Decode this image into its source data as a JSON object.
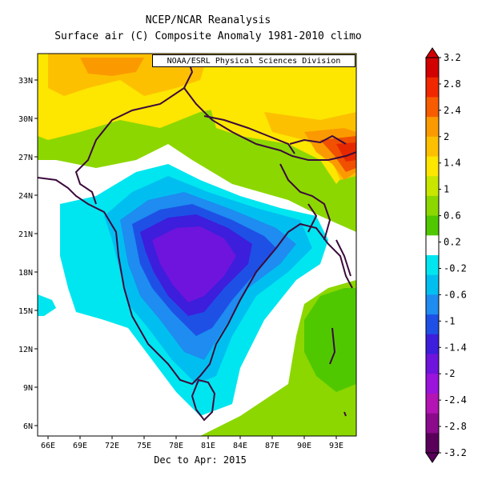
{
  "header": {
    "line1": "NCEP/NCAR Reanalysis",
    "line2": "Surface air (C) Composite Anomaly 1981-2010 climo"
  },
  "credit": "NOAA/ESRL Physical Sciences Division",
  "footer": "Dec to Apr: 2015",
  "lat_ticks": [
    "33N",
    "30N",
    "27N",
    "24N",
    "21N",
    "18N",
    "15N",
    "12N",
    "9N",
    "6N"
  ],
  "lon_ticks": [
    "66E",
    "69E",
    "72E",
    "75E",
    "78E",
    "81E",
    "84E",
    "87E",
    "90E",
    "93E"
  ],
  "colorbar": {
    "labels": [
      "3.2",
      "2.8",
      "2.4",
      "2",
      "1.4",
      "1",
      "0.6",
      "0.2",
      "-0.2",
      "-0.6",
      "-1",
      "-1.4",
      "-2",
      "-2.4",
      "-2.8",
      "-3.2"
    ],
    "colors": [
      "#d20000",
      "#f02800",
      "#f85c00",
      "#fb9a00",
      "#fdc000",
      "#fde600",
      "#c8e600",
      "#8cd700",
      "#50c800",
      "#ffffff",
      "#00e6f0",
      "#00bff0",
      "#1e8cf0",
      "#1e50e6",
      "#3c1edc",
      "#6e14dc",
      "#9a14dc",
      "#b414b4",
      "#8c0a8c",
      "#5a005a"
    ]
  },
  "map_colors": {
    "positive_high": "#e62800",
    "positive_mid": "#fdc000",
    "positive_low": "#8cd700",
    "neutral": "#ffffff",
    "negative_low": "#00e6f0",
    "negative_mid": "#1e8cf0",
    "negative_high": "#6e14dc",
    "coastline": "#3c0a3c"
  }
}
